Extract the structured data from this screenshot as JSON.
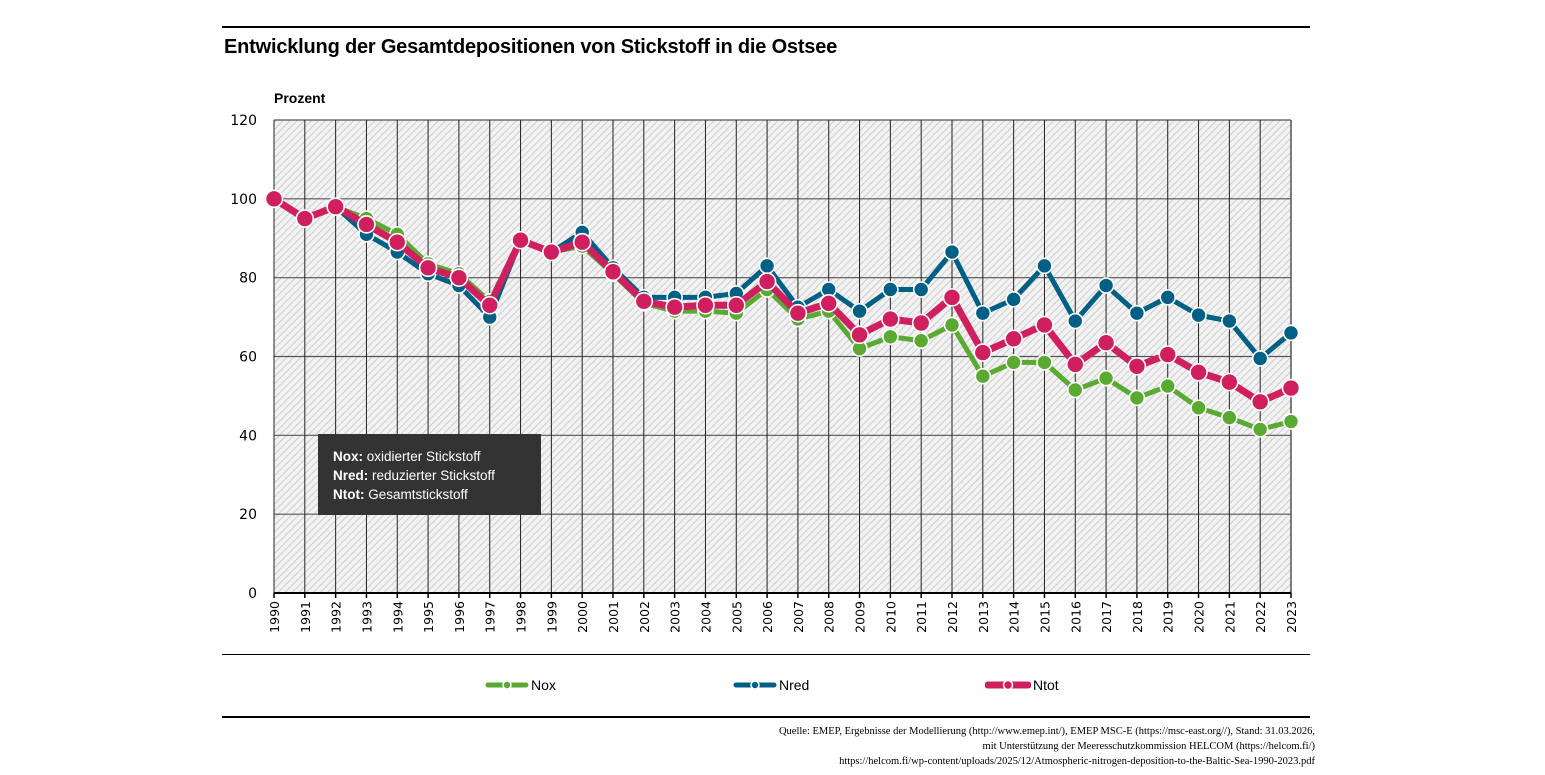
{
  "header": {
    "title": "Entwicklung der Gesamtdepositionen von Stickstoff in die Ostsee"
  },
  "info_box": {
    "lines": [
      {
        "abbr": "Nox",
        "sep": ":",
        "text": " oxidierter Stickstoff"
      },
      {
        "abbr": "Nred",
        "sep": ":",
        "text": " reduzierter Stickstoff"
      },
      {
        "abbr": "Ntot",
        "sep": ":",
        "text": " Gesamtstickstoff"
      }
    ]
  },
  "source": {
    "lines": [
      "Quelle: EMEP, Ergebnisse der Modellierung (http://www.emep.int/), EMEP MSC-E (https://msc-east.org//), Stand: 31.03.2026,",
      "mit Unterstützung der Meeresschutzkommission HELCOM (https://helcom.fi/)",
      "https://helcom.fi/wp-content/uploads/2025/12/Atmospheric-nitrogen-deposition-to-the-Baltic-Sea-1990-2023.pdf"
    ]
  },
  "colors": {
    "nox": "#5aaa32",
    "nred": "#005f85",
    "ntot": "#cf1f5f",
    "grid": "#555555",
    "box": "#333333"
  },
  "chart_data": {
    "type": "line",
    "title": "Entwicklung der Gesamtdepositionen von Stickstoff in die Ostsee",
    "xlabel": "",
    "ylabel": "Prozent",
    "ylim": [
      0,
      120
    ],
    "yticks": [
      0,
      20,
      40,
      60,
      80,
      100,
      120
    ],
    "grid": true,
    "legend_position": "bottom",
    "x": [
      "1990",
      "1991",
      "1992",
      "1993",
      "1994",
      "1995",
      "1996",
      "1997",
      "1998",
      "1999",
      "2000",
      "2001",
      "2002",
      "2003",
      "2004",
      "2005",
      "2006",
      "2007",
      "2008",
      "2009",
      "2010",
      "2011",
      "2012",
      "2013",
      "2014",
      "2015",
      "2016",
      "2017",
      "2018",
      "2019",
      "2020",
      "2021",
      "2022",
      "2023"
    ],
    "series": [
      {
        "name": "Nox",
        "key": "nox",
        "values": [
          100,
          95,
          98,
          95,
          91,
          83.5,
          81,
          74,
          89.5,
          86.5,
          88,
          81,
          73.5,
          71.5,
          71.5,
          71,
          77,
          69.5,
          71.5,
          62,
          65,
          64,
          68,
          55,
          58.5,
          58.5,
          51.5,
          54.5,
          49.5,
          52.5,
          47,
          44.5,
          41.5,
          43.5
        ]
      },
      {
        "name": "Nred",
        "key": "nred",
        "values": [
          100,
          95,
          98,
          91,
          86.5,
          81,
          78,
          70,
          89.5,
          86.5,
          91.5,
          82.5,
          75,
          75,
          75,
          76,
          83,
          72.5,
          77,
          71.5,
          77,
          77,
          86.5,
          71,
          74.5,
          83,
          69,
          78,
          71,
          75,
          70.5,
          69,
          59.5,
          66
        ]
      },
      {
        "name": "Ntot",
        "key": "ntot",
        "values": [
          100,
          95,
          98,
          93.5,
          89,
          82.5,
          80,
          73,
          89.5,
          86.5,
          89,
          81.5,
          74,
          72.5,
          73,
          73,
          79,
          71,
          73.5,
          65.5,
          69.5,
          68.5,
          75,
          61,
          64.5,
          68,
          58,
          63.5,
          57.5,
          60.5,
          56,
          53.5,
          48.5,
          52
        ]
      }
    ]
  }
}
